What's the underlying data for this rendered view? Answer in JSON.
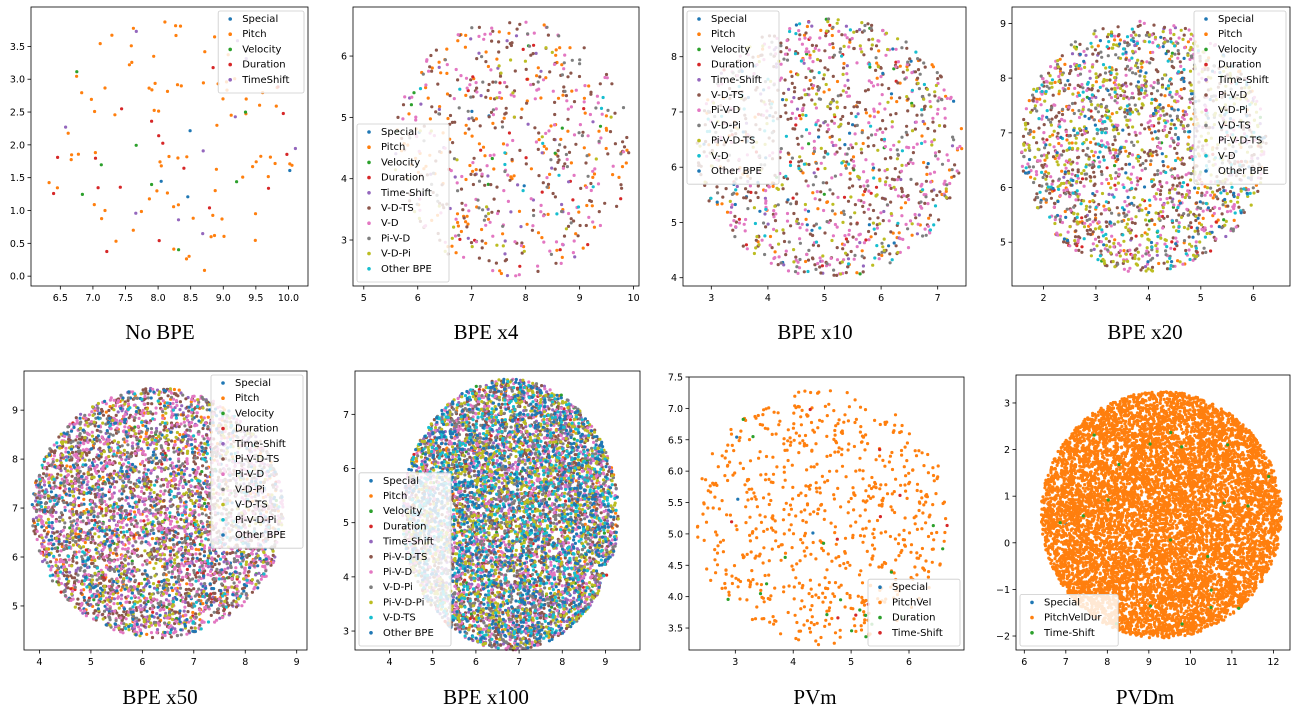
{
  "palette": [
    "#1f77b4",
    "#ff7f0e",
    "#2ca02c",
    "#d62728",
    "#9467bd",
    "#8c564b",
    "#e377c2",
    "#7f7f7f",
    "#bcbd22",
    "#17becf"
  ],
  "chart_data": [
    {
      "type": "scatter",
      "caption": "No BPE",
      "xlim": [
        6.05,
        10.3
      ],
      "ylim": [
        -0.15,
        4.1
      ],
      "xticks": [
        6.5,
        7.0,
        7.5,
        8.0,
        8.5,
        9.0,
        9.5,
        10.0
      ],
      "xtick_labels": [
        "6.5",
        "7.0",
        "7.5",
        "8.0",
        "8.5",
        "9.0",
        "9.5",
        "10.0"
      ],
      "yticks": [
        0,
        0.5,
        1,
        1.5,
        2,
        2.5,
        3,
        3.5
      ],
      "ytick_labels": [
        "0.0",
        "0.5",
        "1.0",
        "1.5",
        "2.0",
        "2.5",
        "3.0",
        "3.5"
      ],
      "cloud": {
        "cx": 8.2,
        "cy": 1.95,
        "rx": 1.95,
        "ry": 1.95
      },
      "legend_position": "upper right",
      "series": [
        {
          "name": "Special",
          "color": "#1f77b4",
          "n": 4
        },
        {
          "name": "Pitch",
          "color": "#ff7f0e",
          "n": 88
        },
        {
          "name": "Velocity",
          "color": "#2ca02c",
          "n": 8
        },
        {
          "name": "Duration",
          "color": "#d62728",
          "n": 18
        },
        {
          "name": "TimeShift",
          "color": "#9467bd",
          "n": 10
        }
      ]
    },
    {
      "type": "scatter",
      "caption": "BPE x4",
      "xlim": [
        4.8,
        10.1
      ],
      "ylim": [
        2.25,
        6.8
      ],
      "xticks": [
        5,
        6,
        7,
        8,
        9,
        10
      ],
      "xtick_labels": [
        "5",
        "6",
        "7",
        "8",
        "9",
        "10"
      ],
      "yticks": [
        3,
        4,
        5,
        6
      ],
      "ytick_labels": [
        "3",
        "4",
        "5",
        "6"
      ],
      "cloud": {
        "cx": 7.75,
        "cy": 4.5,
        "rx": 2.2,
        "ry": 2.1
      },
      "legend_position": "lower left",
      "series": [
        {
          "name": "Special",
          "color": "#1f77b4",
          "n": 4
        },
        {
          "name": "Pitch",
          "color": "#ff7f0e",
          "n": 150
        },
        {
          "name": "Velocity",
          "color": "#2ca02c",
          "n": 10
        },
        {
          "name": "Duration",
          "color": "#d62728",
          "n": 20
        },
        {
          "name": "Time-Shift",
          "color": "#9467bd",
          "n": 40
        },
        {
          "name": "V-D-TS",
          "color": "#8c564b",
          "n": 190
        },
        {
          "name": "V-D",
          "color": "#e377c2",
          "n": 140
        },
        {
          "name": "Pi-V-D",
          "color": "#7f7f7f",
          "n": 60
        },
        {
          "name": "V-D-Pi",
          "color": "#bcbd22",
          "n": 30
        },
        {
          "name": "Other BPE",
          "color": "#17becf",
          "n": 12
        }
      ]
    },
    {
      "type": "scatter",
      "caption": "BPE x10",
      "xlim": [
        2.5,
        7.5
      ],
      "ylim": [
        3.85,
        8.9
      ],
      "xticks": [
        3,
        4,
        5,
        6,
        7
      ],
      "xtick_labels": [
        "3",
        "4",
        "5",
        "6",
        "7"
      ],
      "yticks": [
        4,
        5,
        6,
        7,
        8
      ],
      "ytick_labels": [
        "4",
        "5",
        "6",
        "7",
        "8"
      ],
      "cloud": {
        "cx": 5.1,
        "cy": 6.35,
        "rx": 2.35,
        "ry": 2.35
      },
      "legend_position": "upper left",
      "series": [
        {
          "name": "Special",
          "color": "#1f77b4",
          "n": 6
        },
        {
          "name": "Pitch",
          "color": "#ff7f0e",
          "n": 120
        },
        {
          "name": "Velocity",
          "color": "#2ca02c",
          "n": 14
        },
        {
          "name": "Duration",
          "color": "#d62728",
          "n": 30
        },
        {
          "name": "Time-Shift",
          "color": "#9467bd",
          "n": 50
        },
        {
          "name": "V-D-TS",
          "color": "#8c564b",
          "n": 380
        },
        {
          "name": "Pi-V-D",
          "color": "#e377c2",
          "n": 300
        },
        {
          "name": "V-D-Pi",
          "color": "#7f7f7f",
          "n": 130
        },
        {
          "name": "Pi-V-D-TS",
          "color": "#bcbd22",
          "n": 130
        },
        {
          "name": "V-D",
          "color": "#17becf",
          "n": 60
        },
        {
          "name": "Other BPE",
          "color": "#1f77b4",
          "n": 30
        }
      ]
    },
    {
      "type": "scatter",
      "caption": "BPE x20",
      "xlim": [
        1.4,
        6.7
      ],
      "ylim": [
        4.2,
        9.3
      ],
      "xticks": [
        2,
        3,
        4,
        5,
        6
      ],
      "xtick_labels": [
        "2",
        "3",
        "4",
        "5",
        "6"
      ],
      "yticks": [
        5,
        6,
        7,
        8,
        9
      ],
      "ytick_labels": [
        "5",
        "6",
        "7",
        "8",
        "9"
      ],
      "cloud": {
        "cx": 3.9,
        "cy": 6.75,
        "rx": 2.35,
        "ry": 2.3
      },
      "legend_position": "upper right",
      "series": [
        {
          "name": "Special",
          "color": "#1f77b4",
          "n": 10
        },
        {
          "name": "Pitch",
          "color": "#ff7f0e",
          "n": 150
        },
        {
          "name": "Velocity",
          "color": "#2ca02c",
          "n": 20
        },
        {
          "name": "Duration",
          "color": "#d62728",
          "n": 40
        },
        {
          "name": "Time-Shift",
          "color": "#9467bd",
          "n": 60
        },
        {
          "name": "Pi-V-D",
          "color": "#8c564b",
          "n": 500
        },
        {
          "name": "V-D-Pi",
          "color": "#e377c2",
          "n": 400
        },
        {
          "name": "V-D-TS",
          "color": "#7f7f7f",
          "n": 250
        },
        {
          "name": "Pi-V-D-TS",
          "color": "#bcbd22",
          "n": 400
        },
        {
          "name": "V-D",
          "color": "#17becf",
          "n": 150
        },
        {
          "name": "Other BPE",
          "color": "#1f77b4",
          "n": 100
        }
      ]
    },
    {
      "type": "scatter",
      "caption": "BPE x50",
      "xlim": [
        3.7,
        9.2
      ],
      "ylim": [
        4.1,
        9.8
      ],
      "xticks": [
        4,
        5,
        6,
        7,
        8,
        9
      ],
      "xtick_labels": [
        "4",
        "5",
        "6",
        "7",
        "8",
        "9"
      ],
      "yticks": [
        5,
        6,
        7,
        8,
        9
      ],
      "ytick_labels": [
        "5",
        "6",
        "7",
        "8",
        "9"
      ],
      "cloud": {
        "cx": 6.3,
        "cy": 6.9,
        "rx": 2.45,
        "ry": 2.55
      },
      "legend_position": "upper right",
      "series": [
        {
          "name": "Special",
          "color": "#1f77b4",
          "n": 150
        },
        {
          "name": "Pitch",
          "color": "#ff7f0e",
          "n": 300
        },
        {
          "name": "Velocity",
          "color": "#2ca02c",
          "n": 60
        },
        {
          "name": "Duration",
          "color": "#d62728",
          "n": 80
        },
        {
          "name": "Time-Shift",
          "color": "#9467bd",
          "n": 500
        },
        {
          "name": "Pi-V-D-TS",
          "color": "#8c564b",
          "n": 1100
        },
        {
          "name": "Pi-V-D",
          "color": "#e377c2",
          "n": 1100
        },
        {
          "name": "V-D-Pi",
          "color": "#7f7f7f",
          "n": 600
        },
        {
          "name": "V-D-TS",
          "color": "#bcbd22",
          "n": 400
        },
        {
          "name": "Pi-V-D-Pi",
          "color": "#17becf",
          "n": 150
        },
        {
          "name": "Other BPE",
          "color": "#1f77b4",
          "n": 300
        }
      ]
    },
    {
      "type": "scatter",
      "caption": "BPE x100",
      "xlim": [
        3.2,
        9.8
      ],
      "ylim": [
        2.65,
        7.8
      ],
      "xticks": [
        4,
        5,
        6,
        7,
        8,
        9
      ],
      "xtick_labels": [
        "4",
        "5",
        "6",
        "7",
        "8",
        "9"
      ],
      "yticks": [
        3,
        4,
        5,
        6,
        7
      ],
      "ytick_labels": [
        "3",
        "4",
        "5",
        "6",
        "7"
      ],
      "cloud": {
        "cx": 6.8,
        "cy": 5.15,
        "rx": 2.5,
        "ry": 2.5
      },
      "legend_position": "lower left",
      "series": [
        {
          "name": "Special",
          "color": "#1f77b4",
          "n": 200
        },
        {
          "name": "Pitch",
          "color": "#ff7f0e",
          "n": 200
        },
        {
          "name": "Velocity",
          "color": "#2ca02c",
          "n": 60
        },
        {
          "name": "Duration",
          "color": "#d62728",
          "n": 80
        },
        {
          "name": "Time-Shift",
          "color": "#9467bd",
          "n": 900
        },
        {
          "name": "Pi-V-D-TS",
          "color": "#8c564b",
          "n": 1200
        },
        {
          "name": "Pi-V-D",
          "color": "#e377c2",
          "n": 1000
        },
        {
          "name": "V-D-Pi",
          "color": "#7f7f7f",
          "n": 900
        },
        {
          "name": "Pi-V-D-Pi",
          "color": "#bcbd22",
          "n": 1000
        },
        {
          "name": "V-D-TS",
          "color": "#17becf",
          "n": 700
        },
        {
          "name": "Other BPE",
          "color": "#1f77b4",
          "n": 800
        }
      ]
    },
    {
      "type": "scatter",
      "caption": "PVm",
      "xlim": [
        2.2,
        6.95
      ],
      "ylim": [
        3.15,
        7.5
      ],
      "xticks": [
        3,
        4,
        5,
        6
      ],
      "xtick_labels": [
        "3",
        "4",
        "5",
        "6"
      ],
      "yticks": [
        3.5,
        4.0,
        4.5,
        5.0,
        5.5,
        6.0,
        6.5,
        7.0,
        7.5
      ],
      "ytick_labels": [
        "3.5",
        "4.0",
        "4.5",
        "5.0",
        "5.5",
        "6.0",
        "6.5",
        "7.0",
        "7.5"
      ],
      "cloud": {
        "cx": 4.5,
        "cy": 5.25,
        "rx": 2.2,
        "ry": 2.05
      },
      "legend_position": "lower right",
      "series": [
        {
          "name": "Special",
          "color": "#1f77b4",
          "n": 3
        },
        {
          "name": "PitchVel",
          "color": "#ff7f0e",
          "n": 700
        },
        {
          "name": "Duration",
          "color": "#2ca02c",
          "n": 18
        },
        {
          "name": "Time-Shift",
          "color": "#d62728",
          "n": 10
        }
      ]
    },
    {
      "type": "scatter",
      "caption": "PVDm",
      "xlim": [
        5.8,
        12.4
      ],
      "ylim": [
        -2.3,
        3.6
      ],
      "xticks": [
        6,
        7,
        8,
        9,
        10,
        11,
        12
      ],
      "xtick_labels": [
        "6",
        "7",
        "8",
        "9",
        "10",
        "11",
        "12"
      ],
      "yticks": [
        -2,
        -1,
        0,
        1,
        2,
        3
      ],
      "ytick_labels": [
        "−2",
        "−1",
        "0",
        "1",
        "2",
        "3"
      ],
      "cloud": {
        "cx": 9.3,
        "cy": 0.6,
        "rx": 2.9,
        "ry": 2.65
      },
      "legend_position": "lower left",
      "series": [
        {
          "name": "Special",
          "color": "#1f77b4",
          "n": 3
        },
        {
          "name": "PitchVelDur",
          "color": "#ff7f0e",
          "n": 9000
        },
        {
          "name": "Time-Shift",
          "color": "#2ca02c",
          "n": 20
        }
      ]
    }
  ]
}
